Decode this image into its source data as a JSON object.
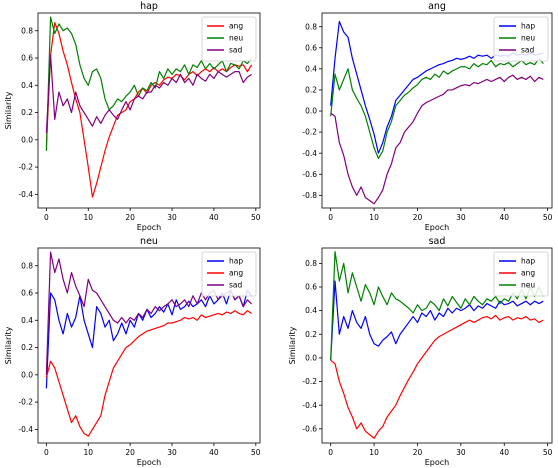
{
  "chart_data": [
    {
      "type": "line",
      "title": "hap",
      "xlabel": "Epoch",
      "ylabel": "Similarity",
      "xlim": [
        -2,
        51
      ],
      "ylim": [
        -0.5,
        0.93
      ],
      "xticks": [
        0,
        10,
        20,
        30,
        40,
        50
      ],
      "yticks": [
        -0.4,
        -0.2,
        0.0,
        0.2,
        0.4,
        0.6,
        0.8
      ],
      "legend_position": "top-right",
      "x": [
        0,
        1,
        2,
        3,
        4,
        5,
        6,
        7,
        8,
        9,
        10,
        11,
        12,
        13,
        14,
        15,
        16,
        17,
        18,
        19,
        20,
        21,
        22,
        23,
        24,
        25,
        26,
        27,
        28,
        29,
        30,
        31,
        32,
        33,
        34,
        35,
        36,
        37,
        38,
        39,
        40,
        41,
        42,
        43,
        44,
        45,
        46,
        47,
        48,
        49
      ],
      "series": [
        {
          "name": "ang",
          "color": "#ff0000",
          "values": [
            -0.05,
            0.62,
            0.86,
            0.78,
            0.65,
            0.55,
            0.42,
            0.3,
            0.2,
            0.0,
            -0.2,
            -0.42,
            -0.32,
            -0.2,
            -0.08,
            0.02,
            0.1,
            0.18,
            0.2,
            0.22,
            0.28,
            0.3,
            0.35,
            0.38,
            0.34,
            0.4,
            0.42,
            0.4,
            0.44,
            0.46,
            0.45,
            0.48,
            0.47,
            0.44,
            0.48,
            0.5,
            0.47,
            0.5,
            0.52,
            0.5,
            0.53,
            0.5,
            0.52,
            0.5,
            0.53,
            0.55,
            0.54,
            0.55,
            0.5,
            0.55
          ]
        },
        {
          "name": "neu",
          "color": "#008000",
          "values": [
            -0.08,
            0.9,
            0.78,
            0.85,
            0.8,
            0.82,
            0.78,
            0.7,
            0.55,
            0.45,
            0.4,
            0.5,
            0.52,
            0.45,
            0.3,
            0.22,
            0.25,
            0.3,
            0.28,
            0.32,
            0.35,
            0.4,
            0.32,
            0.38,
            0.36,
            0.42,
            0.38,
            0.5,
            0.45,
            0.52,
            0.48,
            0.52,
            0.5,
            0.55,
            0.48,
            0.55,
            0.53,
            0.58,
            0.52,
            0.56,
            0.52,
            0.55,
            0.58,
            0.5,
            0.56,
            0.55,
            0.52,
            0.58,
            0.56,
            0.6
          ]
        },
        {
          "name": "sad",
          "color": "#800080",
          "values": [
            0.05,
            0.62,
            0.15,
            0.35,
            0.25,
            0.3,
            0.2,
            0.35,
            0.25,
            0.2,
            0.15,
            0.1,
            0.17,
            0.12,
            0.18,
            0.22,
            0.18,
            0.15,
            0.22,
            0.28,
            0.22,
            0.3,
            0.32,
            0.3,
            0.35,
            0.35,
            0.4,
            0.38,
            0.42,
            0.4,
            0.45,
            0.42,
            0.48,
            0.42,
            0.45,
            0.4,
            0.48,
            0.45,
            0.43,
            0.48,
            0.45,
            0.5,
            0.48,
            0.46,
            0.48,
            0.5,
            0.5,
            0.42,
            0.46,
            0.48
          ]
        }
      ]
    },
    {
      "type": "line",
      "title": "ang",
      "xlabel": "Epoch",
      "ylabel": "",
      "xlim": [
        -2,
        51
      ],
      "ylim": [
        -0.92,
        0.93
      ],
      "xticks": [
        0,
        10,
        20,
        30,
        40,
        50
      ],
      "yticks": [
        -0.8,
        -0.6,
        -0.4,
        -0.2,
        0.0,
        0.2,
        0.4,
        0.6,
        0.8
      ],
      "legend_position": "top-right",
      "x": [
        0,
        1,
        2,
        3,
        4,
        5,
        6,
        7,
        8,
        9,
        10,
        11,
        12,
        13,
        14,
        15,
        16,
        17,
        18,
        19,
        20,
        21,
        22,
        23,
        24,
        25,
        26,
        27,
        28,
        29,
        30,
        31,
        32,
        33,
        34,
        35,
        36,
        37,
        38,
        39,
        40,
        41,
        42,
        43,
        44,
        45,
        46,
        47,
        48,
        49
      ],
      "series": [
        {
          "name": "hap",
          "color": "#0000ff",
          "values": [
            0.05,
            0.5,
            0.85,
            0.75,
            0.7,
            0.5,
            0.35,
            0.2,
            0.05,
            -0.08,
            -0.22,
            -0.4,
            -0.3,
            -0.15,
            -0.05,
            0.1,
            0.15,
            0.2,
            0.25,
            0.3,
            0.32,
            0.35,
            0.38,
            0.4,
            0.42,
            0.44,
            0.45,
            0.47,
            0.48,
            0.5,
            0.49,
            0.5,
            0.52,
            0.5,
            0.53,
            0.52,
            0.53,
            0.5,
            0.53,
            0.52,
            0.53,
            0.52,
            0.55,
            0.53,
            0.54,
            0.53,
            0.55,
            0.53,
            0.54,
            0.55
          ]
        },
        {
          "name": "neu",
          "color": "#008000",
          "values": [
            -0.05,
            0.35,
            0.2,
            0.3,
            0.4,
            0.2,
            0.12,
            0.05,
            -0.05,
            -0.2,
            -0.35,
            -0.45,
            -0.38,
            -0.2,
            -0.1,
            0.05,
            0.1,
            0.15,
            0.18,
            0.22,
            0.25,
            0.3,
            0.32,
            0.3,
            0.35,
            0.32,
            0.38,
            0.35,
            0.38,
            0.4,
            0.42,
            0.42,
            0.4,
            0.45,
            0.42,
            0.45,
            0.44,
            0.48,
            0.42,
            0.45,
            0.44,
            0.46,
            0.42,
            0.45,
            0.48,
            0.44,
            0.46,
            0.44,
            0.5,
            0.45
          ]
        },
        {
          "name": "sad",
          "color": "#800080",
          "values": [
            -0.02,
            -0.05,
            -0.3,
            -0.42,
            -0.6,
            -0.72,
            -0.8,
            -0.72,
            -0.82,
            -0.85,
            -0.88,
            -0.82,
            -0.75,
            -0.6,
            -0.5,
            -0.35,
            -0.3,
            -0.2,
            -0.15,
            -0.1,
            -0.02,
            0.05,
            0.08,
            0.1,
            0.12,
            0.14,
            0.16,
            0.2,
            0.2,
            0.22,
            0.24,
            0.25,
            0.24,
            0.27,
            0.26,
            0.28,
            0.3,
            0.28,
            0.3,
            0.32,
            0.28,
            0.32,
            0.34,
            0.3,
            0.32,
            0.3,
            0.33,
            0.28,
            0.32,
            0.3
          ]
        }
      ]
    },
    {
      "type": "line",
      "title": "neu",
      "xlabel": "Epoch",
      "ylabel": "Similarity",
      "xlim": [
        -2,
        51
      ],
      "ylim": [
        -0.5,
        0.93
      ],
      "xticks": [
        0,
        10,
        20,
        30,
        40,
        50
      ],
      "yticks": [
        -0.4,
        -0.2,
        0.0,
        0.2,
        0.4,
        0.6,
        0.8
      ],
      "legend_position": "top-right",
      "x": [
        0,
        1,
        2,
        3,
        4,
        5,
        6,
        7,
        8,
        9,
        10,
        11,
        12,
        13,
        14,
        15,
        16,
        17,
        18,
        19,
        20,
        21,
        22,
        23,
        24,
        25,
        26,
        27,
        28,
        29,
        30,
        31,
        32,
        33,
        34,
        35,
        36,
        37,
        38,
        39,
        40,
        41,
        42,
        43,
        44,
        45,
        46,
        47,
        48,
        49
      ],
      "series": [
        {
          "name": "hap",
          "color": "#0000ff",
          "values": [
            -0.1,
            0.6,
            0.55,
            0.4,
            0.3,
            0.45,
            0.35,
            0.42,
            0.58,
            0.4,
            0.3,
            0.2,
            0.5,
            0.45,
            0.35,
            0.4,
            0.25,
            0.3,
            0.38,
            0.3,
            0.4,
            0.35,
            0.45,
            0.4,
            0.48,
            0.42,
            0.45,
            0.5,
            0.46,
            0.52,
            0.44,
            0.55,
            0.48,
            0.5,
            0.54,
            0.5,
            0.52,
            0.55,
            0.5,
            0.58,
            0.52,
            0.55,
            0.6,
            0.52,
            0.62,
            0.55,
            0.58,
            0.5,
            0.62,
            0.58
          ]
        },
        {
          "name": "ang",
          "color": "#ff0000",
          "values": [
            -0.02,
            0.1,
            0.05,
            -0.05,
            -0.15,
            -0.25,
            -0.35,
            -0.3,
            -0.38,
            -0.43,
            -0.45,
            -0.4,
            -0.35,
            -0.3,
            -0.15,
            -0.05,
            0.05,
            0.1,
            0.15,
            0.2,
            0.22,
            0.25,
            0.28,
            0.3,
            0.32,
            0.33,
            0.34,
            0.35,
            0.36,
            0.38,
            0.38,
            0.39,
            0.4,
            0.42,
            0.41,
            0.42,
            0.4,
            0.44,
            0.42,
            0.43,
            0.44,
            0.45,
            0.44,
            0.46,
            0.45,
            0.47,
            0.45,
            0.44,
            0.47,
            0.45
          ]
        },
        {
          "name": "sad",
          "color": "#800080",
          "values": [
            0.0,
            0.9,
            0.75,
            0.85,
            0.7,
            0.6,
            0.75,
            0.65,
            0.58,
            0.5,
            0.7,
            0.62,
            0.6,
            0.55,
            0.5,
            0.45,
            0.4,
            0.38,
            0.42,
            0.38,
            0.42,
            0.4,
            0.45,
            0.42,
            0.48,
            0.45,
            0.5,
            0.47,
            0.5,
            0.52,
            0.55,
            0.5,
            0.52,
            0.55,
            0.5,
            0.58,
            0.52,
            0.6,
            0.55,
            0.6,
            0.62,
            0.55,
            0.58,
            0.6,
            0.62,
            0.55,
            0.58,
            0.5,
            0.55,
            0.52
          ]
        }
      ]
    },
    {
      "type": "line",
      "title": "sad",
      "xlabel": "Epoch",
      "ylabel": "Similarity",
      "xlim": [
        -2,
        51
      ],
      "ylim": [
        -0.72,
        0.93
      ],
      "xticks": [
        0,
        10,
        20,
        30,
        40,
        50
      ],
      "yticks": [
        -0.6,
        -0.4,
        -0.2,
        0.0,
        0.2,
        0.4,
        0.6,
        0.8
      ],
      "legend_position": "top-right",
      "x": [
        0,
        1,
        2,
        3,
        4,
        5,
        6,
        7,
        8,
        9,
        10,
        11,
        12,
        13,
        14,
        15,
        16,
        17,
        18,
        19,
        20,
        21,
        22,
        23,
        24,
        25,
        26,
        27,
        28,
        29,
        30,
        31,
        32,
        33,
        34,
        35,
        36,
        37,
        38,
        39,
        40,
        41,
        42,
        43,
        44,
        45,
        46,
        47,
        48,
        49
      ],
      "series": [
        {
          "name": "hap",
          "color": "#0000ff",
          "values": [
            -0.02,
            0.65,
            0.2,
            0.35,
            0.25,
            0.4,
            0.3,
            0.25,
            0.35,
            0.2,
            0.12,
            0.1,
            0.15,
            0.18,
            0.22,
            0.12,
            0.2,
            0.25,
            0.3,
            0.35,
            0.3,
            0.38,
            0.35,
            0.4,
            0.32,
            0.38,
            0.35,
            0.42,
            0.38,
            0.42,
            0.4,
            0.42,
            0.45,
            0.4,
            0.44,
            0.42,
            0.46,
            0.44,
            0.42,
            0.48,
            0.45,
            0.46,
            0.48,
            0.44,
            0.46,
            0.48,
            0.45,
            0.48,
            0.46,
            0.48
          ]
        },
        {
          "name": "ang",
          "color": "#ff0000",
          "values": [
            -0.02,
            -0.05,
            -0.2,
            -0.3,
            -0.42,
            -0.5,
            -0.6,
            -0.55,
            -0.62,
            -0.65,
            -0.68,
            -0.62,
            -0.58,
            -0.5,
            -0.45,
            -0.4,
            -0.32,
            -0.25,
            -0.18,
            -0.12,
            -0.05,
            0.0,
            0.05,
            0.1,
            0.15,
            0.18,
            0.2,
            0.22,
            0.24,
            0.26,
            0.28,
            0.3,
            0.32,
            0.3,
            0.32,
            0.34,
            0.35,
            0.33,
            0.36,
            0.32,
            0.34,
            0.35,
            0.32,
            0.34,
            0.33,
            0.35,
            0.32,
            0.33,
            0.3,
            0.32
          ]
        },
        {
          "name": "neu",
          "color": "#008000",
          "values": [
            -0.02,
            0.9,
            0.65,
            0.8,
            0.55,
            0.72,
            0.6,
            0.48,
            0.62,
            0.55,
            0.45,
            0.6,
            0.52,
            0.45,
            0.55,
            0.5,
            0.48,
            0.45,
            0.42,
            0.38,
            0.45,
            0.4,
            0.42,
            0.48,
            0.45,
            0.4,
            0.5,
            0.44,
            0.52,
            0.47,
            0.42,
            0.5,
            0.45,
            0.52,
            0.48,
            0.45,
            0.5,
            0.48,
            0.52,
            0.46,
            0.5,
            0.48,
            0.55,
            0.5,
            0.58,
            0.5,
            0.6,
            0.52,
            0.6,
            0.52
          ]
        }
      ]
    }
  ]
}
